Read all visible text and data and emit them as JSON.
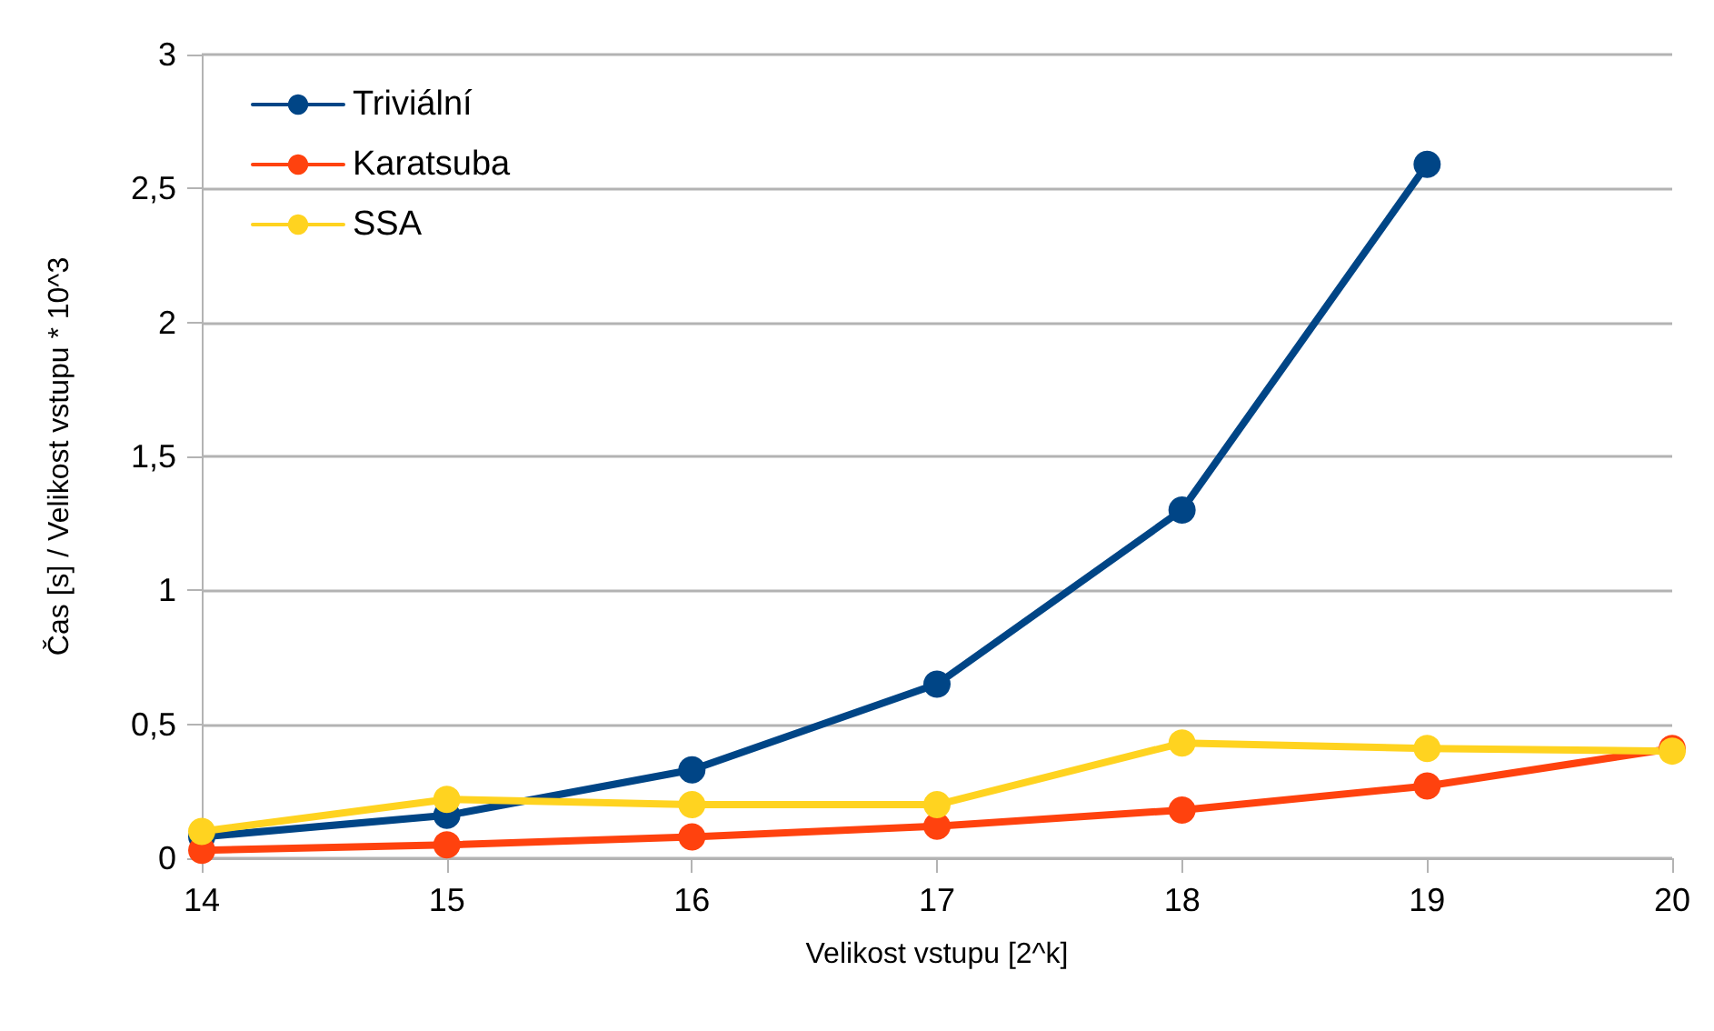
{
  "chart_data": {
    "type": "line",
    "xlabel": "Velikost vstupu [2^k]",
    "ylabel": "Čas [s] / Velikost vstupu * 10^3",
    "x": [
      14,
      15,
      16,
      17,
      18,
      19,
      20
    ],
    "series": [
      {
        "name": "Triviální",
        "color": "#004586",
        "values": [
          0.08,
          0.16,
          0.33,
          0.65,
          1.3,
          2.59,
          null
        ]
      },
      {
        "name": "Karatsuba",
        "color": "#ff420e",
        "values": [
          0.03,
          0.05,
          0.08,
          0.12,
          0.18,
          0.27,
          0.41
        ]
      },
      {
        "name": "SSA",
        "color": "#ffd320",
        "values": [
          0.1,
          0.22,
          0.2,
          0.2,
          0.43,
          0.41,
          0.4
        ]
      }
    ],
    "xlim": [
      14,
      20
    ],
    "xticks": [
      14,
      15,
      16,
      17,
      18,
      19,
      20
    ],
    "ylim": [
      0,
      3
    ],
    "yticks": [
      0,
      {
        "value": 0.5,
        "label": "0,5"
      },
      1,
      {
        "value": 1.5,
        "label": "1,5"
      },
      2,
      {
        "value": 2.5,
        "label": "2,5"
      },
      3
    ],
    "grid": "y",
    "legend": "top left",
    "marker": "circle",
    "line_style": "solid"
  }
}
